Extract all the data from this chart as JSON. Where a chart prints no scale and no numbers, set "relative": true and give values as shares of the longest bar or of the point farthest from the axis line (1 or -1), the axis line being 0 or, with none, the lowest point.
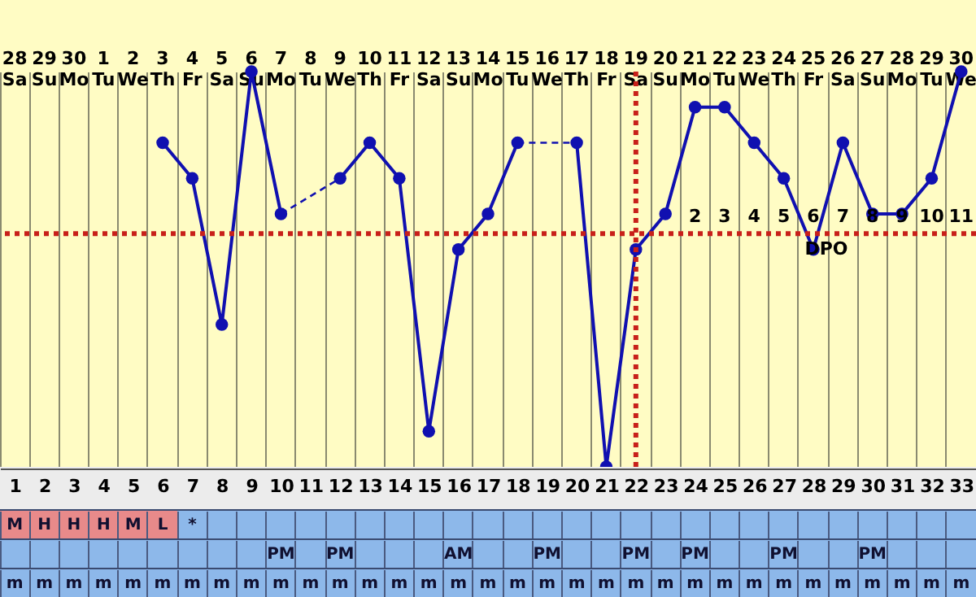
{
  "chart_data": [
    {
      "type": "line",
      "relative": true,
      "categories": [
        "28 Sa",
        "29 Su",
        "30 Mo",
        "1 Tu",
        "2 We",
        "3 Th",
        "4 Fr",
        "5 Sa",
        "6 Su",
        "7 Mo",
        "8 Tu",
        "9 We",
        "10 Th",
        "11 Fr",
        "12 Sa",
        "13 Su",
        "14 Mo",
        "15 Tu",
        "16 We",
        "17 Th",
        "18 Fr",
        "19 Sa",
        "20 Su",
        "21 Mo",
        "22 Tu",
        "23 We",
        "24 Th",
        "25 Fr",
        "26 Sa",
        "27 Su",
        "28 Mo",
        "29 Tu",
        "30 We"
      ],
      "series": [
        {
          "color": "#1010b0",
          "values": [
            null,
            null,
            null,
            null,
            null,
            0.82,
            0.73,
            0.36,
            1,
            0.64,
            null,
            0.73,
            0.82,
            0.73,
            0.09,
            0.55,
            0.64,
            0.82,
            null,
            0.82,
            0,
            0.55,
            0.64,
            0.91,
            0.91,
            0.82,
            0.73,
            0.55,
            0.82,
            0.64,
            0.64,
            0.73,
            1
          ]
        }
      ],
      "marker": "circle",
      "grid": "x",
      "x2lim": [
        0.5,
        33.5
      ],
      "x2ticks": [
        1,
        2,
        3,
        4,
        5,
        6,
        7,
        8,
        9,
        10,
        11,
        12,
        13,
        14,
        15,
        16,
        17,
        18,
        19,
        20,
        21,
        22,
        23,
        24,
        25,
        26,
        27,
        28,
        29,
        30,
        31,
        32,
        33
      ],
      "ref_lines": [
        {
          "axis": "y",
          "value": 0.59,
          "color": "#c8201a",
          "line_style": "dotted"
        },
        {
          "axis": "x",
          "value": "19 Sa",
          "color": "#c8201a",
          "line_style": "dotted"
        }
      ],
      "annotations": [
        "2",
        "3",
        "4",
        "5",
        "6",
        "7",
        "8",
        "9",
        "10",
        "11",
        "DPO"
      ]
    },
    {
      "type": "other",
      "categories": [
        "M",
        "H",
        "H",
        "H",
        "M",
        "L",
        "*",
        null,
        null,
        null,
        null,
        null,
        null,
        null,
        null,
        null,
        null,
        null,
        null,
        null,
        null,
        null,
        null,
        null,
        null,
        null,
        null,
        null,
        null,
        null,
        null,
        null,
        null
      ],
      "colors": [
        "#e88a8a",
        "#e88a8a",
        "#e88a8a",
        "#e88a8a",
        "#e88a8a",
        "#e88a8a",
        "#8db8ea",
        "#8db8ea",
        "#8db8ea",
        "#8db8ea",
        "#8db8ea",
        "#8db8ea",
        "#8db8ea",
        "#8db8ea",
        "#8db8ea",
        "#8db8ea",
        "#8db8ea",
        "#8db8ea",
        "#8db8ea",
        "#8db8ea",
        "#8db8ea",
        "#8db8ea",
        "#8db8ea",
        "#8db8ea",
        "#8db8ea",
        "#8db8ea",
        "#8db8ea",
        "#8db8ea",
        "#8db8ea",
        "#8db8ea",
        "#8db8ea",
        "#8db8ea",
        "#8db8ea"
      ]
    },
    {
      "type": "other",
      "categories": [
        null,
        null,
        null,
        null,
        null,
        null,
        null,
        null,
        null,
        "PM",
        null,
        "PM",
        null,
        null,
        null,
        "AM",
        null,
        null,
        "PM",
        null,
        null,
        "PM",
        null,
        "PM",
        null,
        null,
        "PM",
        null,
        null,
        "PM",
        null,
        null,
        null
      ]
    },
    {
      "type": "other",
      "categories": [
        "m",
        "m",
        "m",
        "m",
        "m",
        "m",
        "m",
        "m",
        "m",
        "m",
        "m",
        "m",
        "m",
        "m",
        "m",
        "m",
        "m",
        "m",
        "m",
        "m",
        "m",
        "m",
        "m",
        "m",
        "m",
        "m",
        "m",
        "m",
        "m",
        "m",
        "m",
        "m",
        "m"
      ]
    }
  ]
}
